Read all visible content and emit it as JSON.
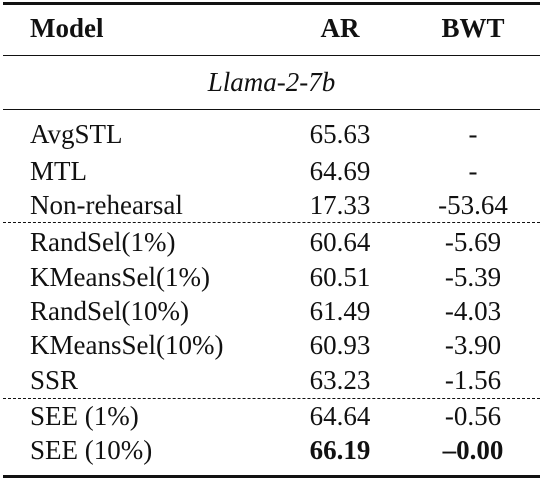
{
  "table": {
    "headers": {
      "model": "Model",
      "ar": "AR",
      "bwt": "BWT"
    },
    "group_label": "Llama-2-7b",
    "rows": [
      {
        "model": "AvgSTL",
        "ar": "65.63",
        "bwt": "-"
      },
      {
        "model": "MTL",
        "ar": "64.69",
        "bwt": "-"
      },
      {
        "model": "Non-rehearsal",
        "ar": "17.33",
        "bwt": "-53.64"
      },
      {
        "model": "RandSel(1%)",
        "ar": "60.64",
        "bwt": "-5.69"
      },
      {
        "model": "KMeansSel(1%)",
        "ar": "60.51",
        "bwt": "-5.39"
      },
      {
        "model": "RandSel(10%)",
        "ar": "61.49",
        "bwt": "-4.03"
      },
      {
        "model": "KMeansSel(10%)",
        "ar": "60.93",
        "bwt": "-3.90"
      },
      {
        "model": "SSR",
        "ar": "63.23",
        "bwt": "-1.56"
      },
      {
        "model": "SEE (1%)",
        "ar": "64.64",
        "bwt": "-0.56"
      },
      {
        "model": "SEE (10%)",
        "ar": "66.19",
        "bwt": "–0.00"
      }
    ]
  }
}
